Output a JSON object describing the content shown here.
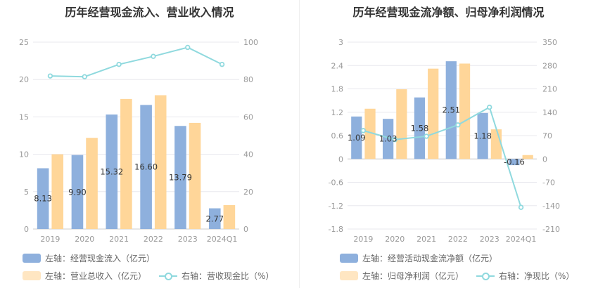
{
  "colors": {
    "blue": "#8eb0dd",
    "orange": "#ffd699",
    "line": "#8fd9de",
    "grid": "#e8e8ee"
  },
  "chart_data": [
    {
      "type": "bar",
      "title": "历年经营现金流入、营业收入情况",
      "categories": [
        "2019",
        "2020",
        "2021",
        "2022",
        "2023",
        "2024Q1"
      ],
      "left_axis": {
        "ylim": [
          0,
          25
        ],
        "ticks": [
          "0",
          "5",
          "10",
          "15",
          "20",
          "25"
        ]
      },
      "right_axis": {
        "ylim": [
          0,
          100
        ],
        "ticks": [
          "0",
          "20",
          "40",
          "60",
          "80",
          "100"
        ]
      },
      "series": [
        {
          "name": "左轴：经营现金流入（亿元）",
          "type": "bar",
          "axis": "left",
          "color": "#8eb0dd",
          "values": [
            8.13,
            9.9,
            15.32,
            16.6,
            13.79,
            2.77
          ],
          "labels": [
            "8.13",
            "9.90",
            "15.32",
            "16.60",
            "13.79",
            "2.77"
          ]
        },
        {
          "name": "左轴：营业总收入（亿元）",
          "type": "bar",
          "axis": "left",
          "color": "#ffd699",
          "values": [
            10.0,
            12.2,
            17.4,
            17.9,
            14.2,
            3.2
          ]
        },
        {
          "name": "右轴：营收现金比（%）",
          "type": "line",
          "axis": "right",
          "color": "#8fd9de",
          "values": [
            81.9,
            81.5,
            88.1,
            92.4,
            97.2,
            88.1
          ]
        }
      ],
      "legend": [
        {
          "label": "左轴：经营现金流入（亿元）",
          "kind": "bar",
          "color": "#8eb0dd"
        },
        {
          "label": "左轴：营业总收入（亿元）",
          "kind": "bar",
          "color": "#ffd699"
        },
        {
          "label": "右轴：营收现金比（%）",
          "kind": "line",
          "color": "#8fd9de"
        }
      ]
    },
    {
      "type": "bar",
      "title": "历年经营现金流净额、归母净利润情况",
      "categories": [
        "2019",
        "2020",
        "2021",
        "2022",
        "2023",
        "2024Q1"
      ],
      "left_axis": {
        "ylim": [
          -1.8,
          3
        ],
        "ticks": [
          "-1.8",
          "-1.2",
          "-0.6",
          "0",
          "0.6",
          "1.2",
          "1.8",
          "2.4",
          "3"
        ]
      },
      "right_axis": {
        "ylim": [
          -210,
          350
        ],
        "ticks": [
          "-210",
          "-140",
          "-70",
          "0",
          "70",
          "140",
          "210",
          "280",
          "350"
        ]
      },
      "series": [
        {
          "name": "左轴：经营活动现金流净额（亿元）",
          "type": "bar",
          "axis": "left",
          "color": "#8eb0dd",
          "values": [
            1.09,
            1.03,
            1.58,
            2.51,
            1.18,
            -0.16
          ],
          "labels": [
            "1.09",
            "1.03",
            "1.58",
            "2.51",
            "1.18",
            "-0.16"
          ]
        },
        {
          "name": "左轴：归母净利润（亿元）",
          "type": "bar",
          "axis": "left",
          "color": "#ffd699",
          "values": [
            1.29,
            1.79,
            2.32,
            2.45,
            0.76,
            0.1
          ]
        },
        {
          "name": "右轴：净现比（%）",
          "type": "line",
          "axis": "right",
          "color": "#8fd9de",
          "values": [
            85,
            58,
            68,
            102,
            155,
            -145
          ]
        }
      ],
      "legend": [
        {
          "label": "左轴：经营活动现金流净额（亿元）",
          "kind": "bar",
          "color": "#8eb0dd"
        },
        {
          "label": "左轴：归母净利润（亿元）",
          "kind": "bar",
          "color": "#ffd699"
        },
        {
          "label": "右轴：净现比（%）",
          "kind": "line",
          "color": "#8fd9de"
        }
      ]
    }
  ]
}
